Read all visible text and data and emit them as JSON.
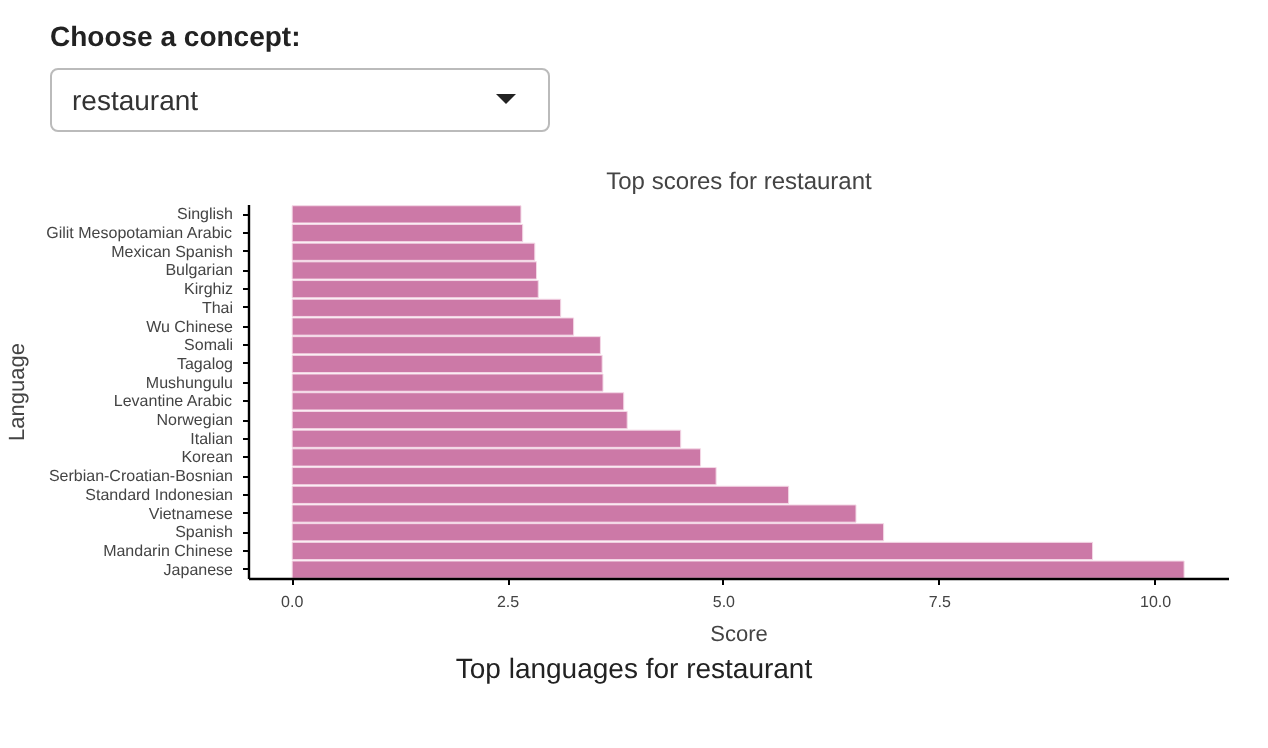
{
  "chart_data": {
    "type": "bar",
    "orientation": "horizontal",
    "title": "Top scores for restaurant",
    "xlabel": "Score",
    "ylabel": "Language",
    "categories": [
      "Singlish",
      "Gilit Mesopotamian Arabic",
      "Mexican Spanish",
      "Bulgarian",
      "Kirghiz",
      "Thai",
      "Wu Chinese",
      "Somali",
      "Tagalog",
      "Mushungulu",
      "Levantine Arabic",
      "Norwegian",
      "Italian",
      "Korean",
      "Serbian-Croatian-Bosnian",
      "Standard Indonesian",
      "Vietnamese",
      "Spanish",
      "Mandarin Chinese",
      "Japanese"
    ],
    "values": [
      2.65,
      2.67,
      2.81,
      2.83,
      2.85,
      3.11,
      3.26,
      3.57,
      3.59,
      3.6,
      3.84,
      3.88,
      4.5,
      4.73,
      4.91,
      5.75,
      6.53,
      6.85,
      9.27,
      10.33
    ],
    "color": "#cc79a7",
    "xlim": [
      -0.5,
      10.85
    ],
    "xticks": [
      {
        "value": 0,
        "label": "0.0"
      },
      {
        "value": 2.5,
        "label": "2.5"
      },
      {
        "value": 5,
        "label": "5.0"
      },
      {
        "value": 7.5,
        "label": "7.5"
      },
      {
        "value": 10,
        "label": "10.0"
      }
    ],
    "grid": false,
    "annotations": [
      "Choose a concept:",
      "restaurant",
      "Top languages for restaurant"
    ]
  }
}
